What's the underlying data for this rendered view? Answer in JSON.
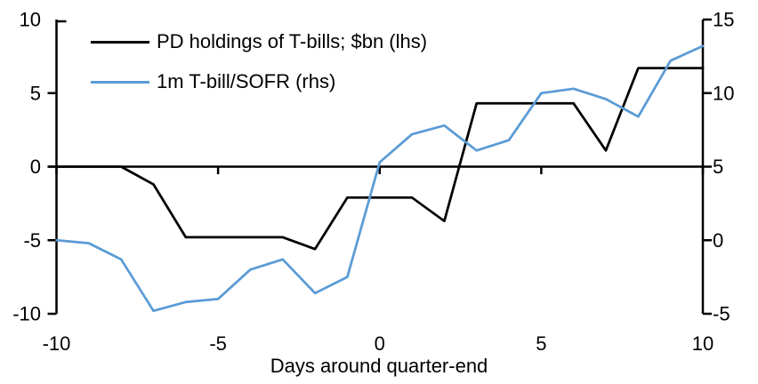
{
  "chart_data": {
    "type": "line",
    "title": "",
    "xlabel": "Days around quarter-end",
    "x": [
      -10,
      -9,
      -8,
      -7,
      -6,
      -5,
      -4,
      -3,
      -2,
      -1,
      0,
      1,
      2,
      3,
      4,
      5,
      6,
      7,
      8,
      9,
      10
    ],
    "series": [
      {
        "name": "PD holdings of T-bills; $bn (lhs)",
        "axis": "left",
        "color": "#000000",
        "values": [
          0,
          0,
          0,
          -1.2,
          -4.8,
          -4.8,
          -4.8,
          -4.8,
          -5.6,
          -2.1,
          -2.1,
          -2.1,
          -3.7,
          4.3,
          4.3,
          4.3,
          4.3,
          1.1,
          6.7,
          6.7,
          6.7
        ]
      },
      {
        "name": "1m T-bill/SOFR (rhs)",
        "axis": "right",
        "color": "#5B9BD5",
        "values": [
          0,
          -0.2,
          -1.3,
          -4.8,
          -4.2,
          -4.0,
          -2.0,
          -1.3,
          -3.6,
          -2.5,
          5.3,
          7.2,
          7.8,
          6.1,
          6.8,
          10.0,
          10.3,
          9.6,
          8.4,
          12.2,
          13.2
        ]
      }
    ],
    "x_lim": [
      -10,
      10
    ],
    "left_ylim": [
      -10,
      10
    ],
    "right_ylim": [
      -5,
      15
    ],
    "left_tick_labels": [
      "10",
      "5",
      "0",
      "-5",
      "-10"
    ],
    "right_tick_labels": [
      "15",
      "10",
      "5",
      "0",
      "-5"
    ],
    "x_tick_labels": [
      "-10",
      "-5",
      "0",
      "5",
      "10"
    ],
    "grid": false,
    "legend_position": "top-left-inside",
    "axis_color": "#000000"
  }
}
